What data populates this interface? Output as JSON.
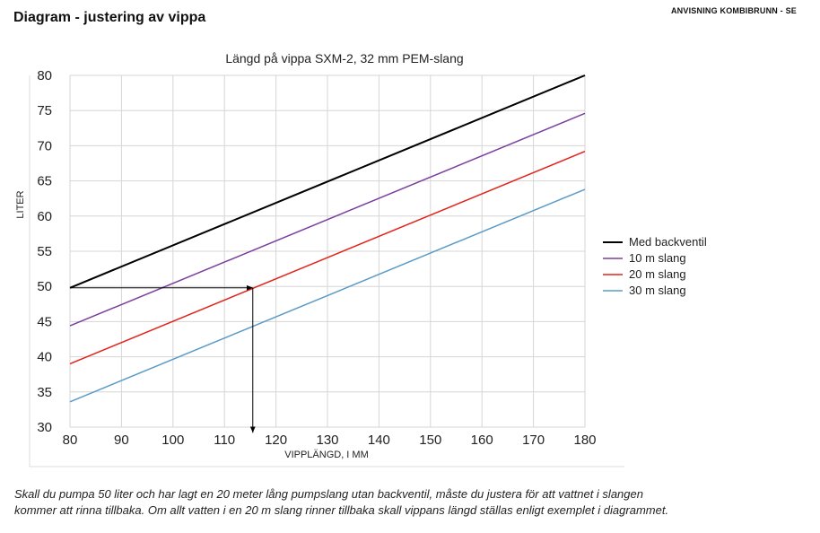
{
  "page": {
    "heading": "Diagram - justering av vippa",
    "doc_label": "ANVISNING KOMBIBRUNN - SE",
    "caption_line1": "Skall du pumpa 50 liter och har lagt en 20 meter lång  pumpslang utan backventil, måste du justera för att vattnet i slangen",
    "caption_line2": "kommer att rinna tillbaka. Om allt vatten i en 20 m slang rinner tillbaka skall vippans längd ställas enligt exemplet i diagrammet."
  },
  "chart_data": {
    "type": "line",
    "title": "Längd på vippa SXM-2, 32 mm PEM-slang",
    "xlabel": "VIPPLÄNGD, I MM",
    "ylabel": "LITER",
    "xlim": [
      80,
      180
    ],
    "ylim": [
      30,
      80
    ],
    "x_ticks": [
      80,
      90,
      100,
      110,
      120,
      130,
      140,
      150,
      160,
      170,
      180
    ],
    "y_ticks": [
      30,
      35,
      40,
      45,
      50,
      55,
      60,
      65,
      70,
      75,
      80
    ],
    "grid": true,
    "legend_position": "right",
    "series": [
      {
        "name": "Med backventil",
        "color": "#000000",
        "x": [
          80,
          180
        ],
        "y": [
          49.8,
          80
        ]
      },
      {
        "name": "10 m slang",
        "color": "#7b3f9e",
        "x": [
          80,
          180
        ],
        "y": [
          44.4,
          74.6
        ]
      },
      {
        "name": "20 m slang",
        "color": "#e2231a",
        "x": [
          80,
          180
        ],
        "y": [
          39.0,
          69.2
        ]
      },
      {
        "name": "30 m slang",
        "color": "#5b9bc8",
        "x": [
          80,
          180
        ],
        "y": [
          33.6,
          63.8
        ]
      }
    ],
    "annotation": {
      "description": "example arrow",
      "start": {
        "x": 80,
        "y": 49.8
      },
      "corner": {
        "x": 115.5,
        "y": 49.8
      },
      "end": {
        "x": 115.5,
        "y": 29.2
      }
    }
  }
}
